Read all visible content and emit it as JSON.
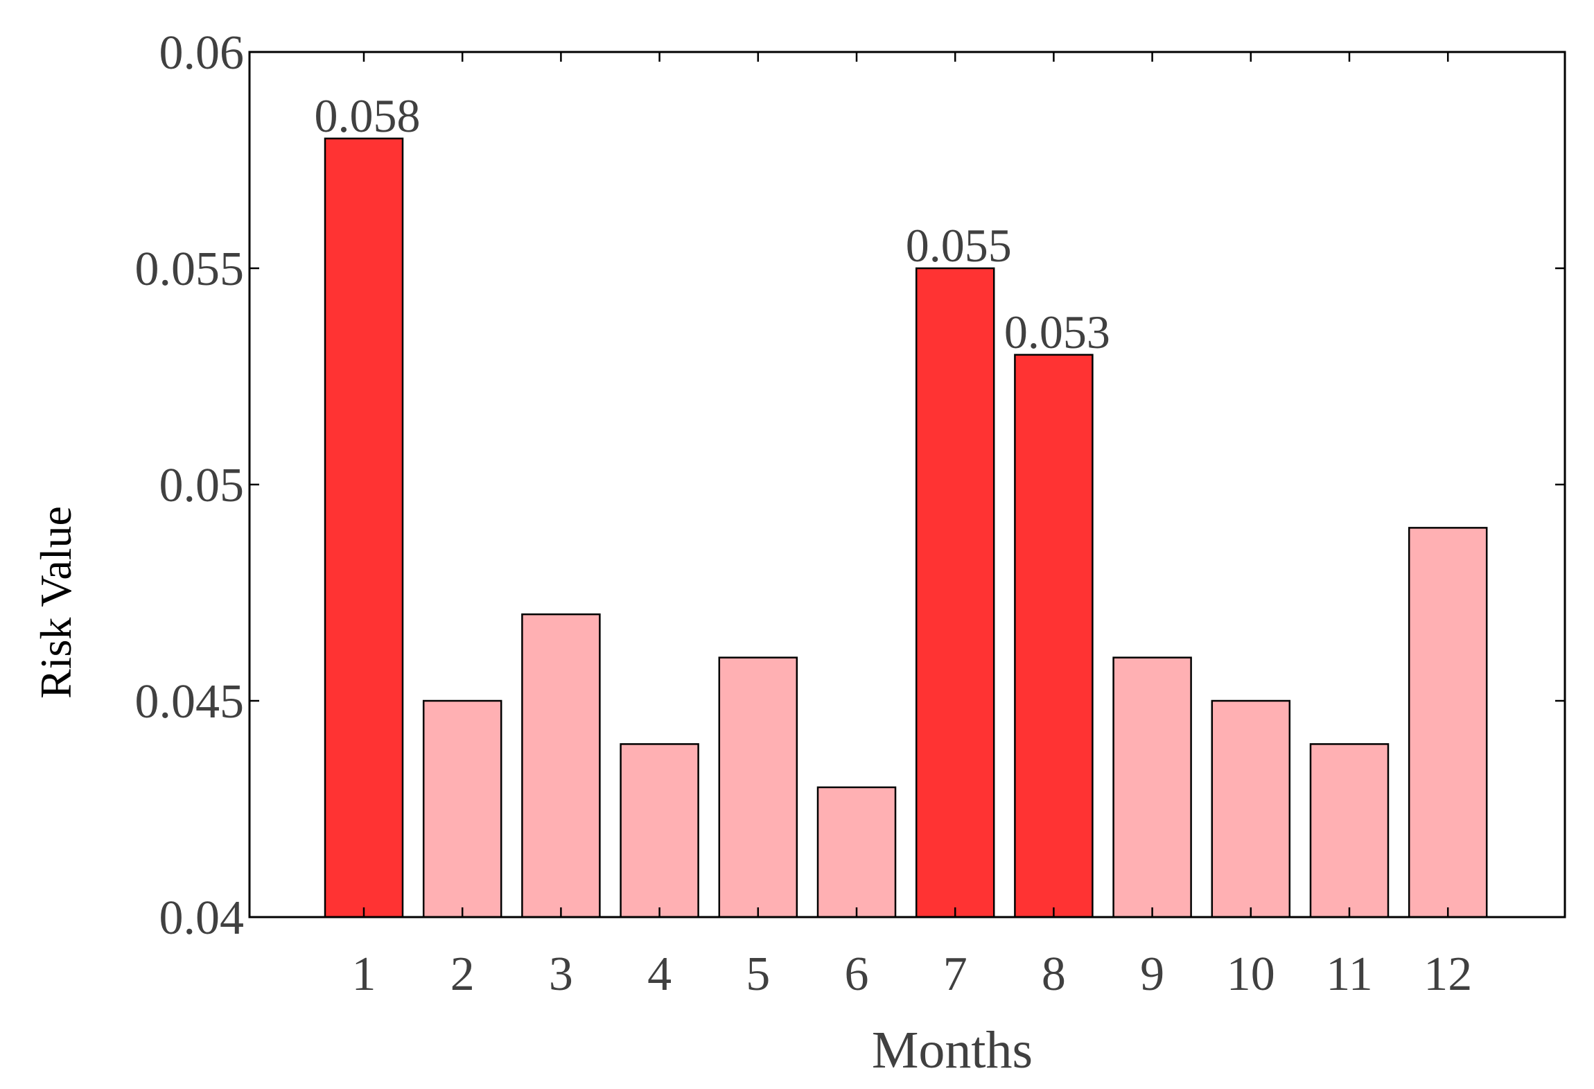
{
  "chart_data": {
    "type": "bar",
    "title": "",
    "xlabel": "Months",
    "ylabel": "Risk Value",
    "categories": [
      "1",
      "2",
      "3",
      "4",
      "5",
      "6",
      "7",
      "8",
      "9",
      "10",
      "11",
      "12"
    ],
    "values": [
      0.058,
      0.045,
      0.047,
      0.044,
      0.046,
      0.043,
      0.055,
      0.053,
      0.046,
      0.045,
      0.044,
      0.049
    ],
    "highlighted": [
      true,
      false,
      false,
      false,
      false,
      false,
      true,
      true,
      false,
      false,
      false,
      false
    ],
    "data_labels": [
      "0.058",
      "",
      "",
      "",
      "",
      "",
      "0.055",
      "0.053",
      "",
      "",
      "",
      ""
    ],
    "ylim": [
      0.04,
      0.06
    ],
    "yticks": [
      0.04,
      0.045,
      0.05,
      0.055,
      0.06
    ],
    "ytick_labels": [
      "0.04",
      "0.045",
      "0.05",
      "0.055",
      "0.06"
    ],
    "grid": false,
    "legend": "none",
    "colors": {
      "highlight": "#ff3333",
      "normal": "#ffb0b3",
      "edge": "#000000",
      "text": "#404040"
    }
  }
}
